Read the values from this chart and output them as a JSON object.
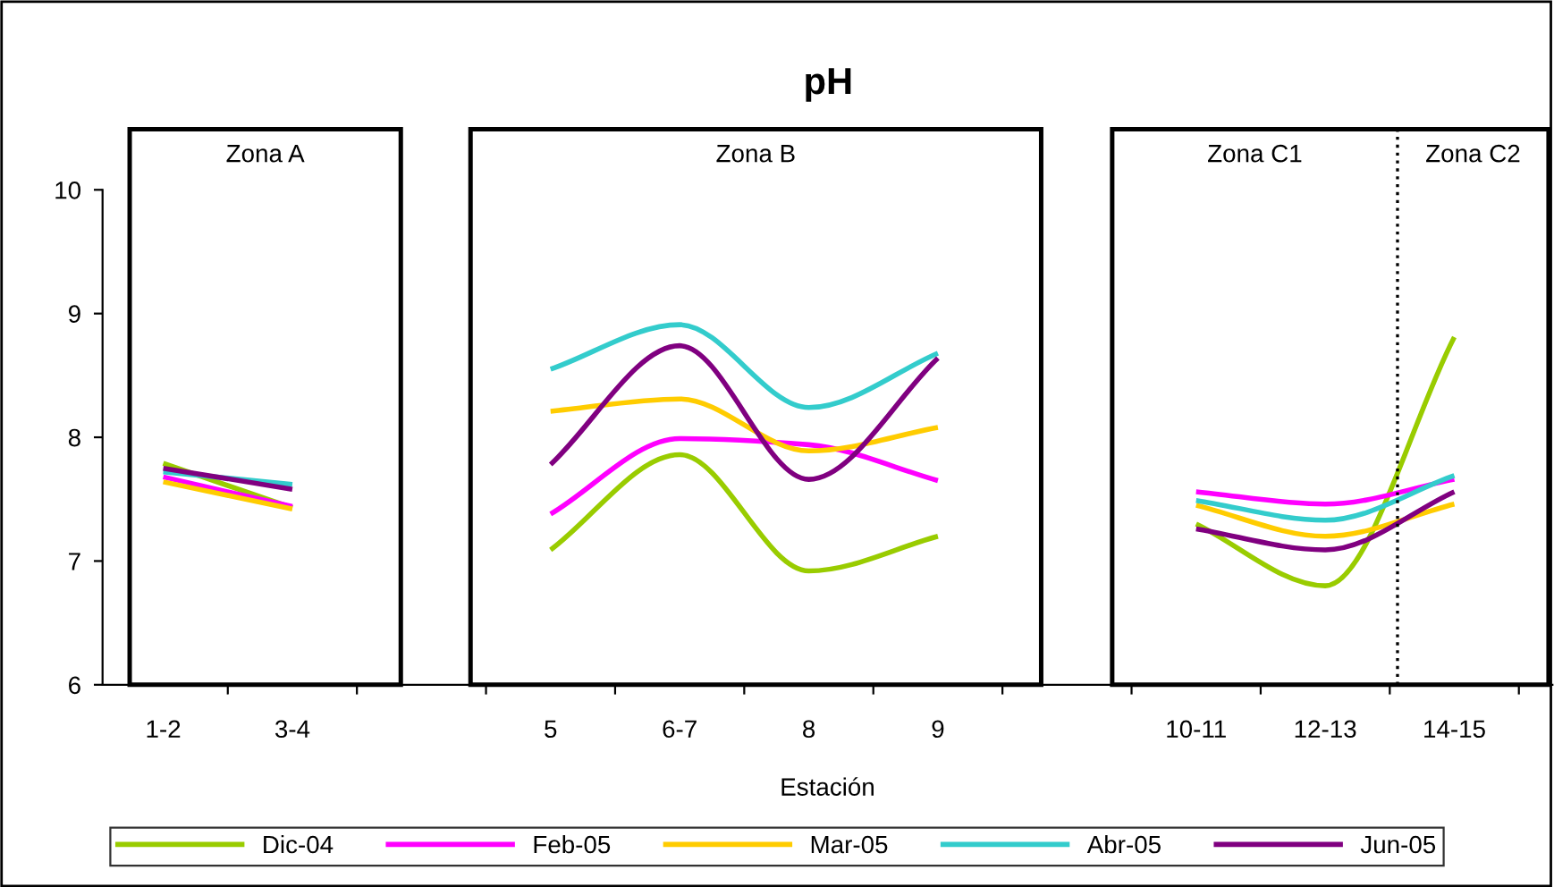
{
  "chart_data": {
    "type": "line",
    "title": "pH",
    "xlabel": "Estación",
    "categories": [
      "1-2",
      "3-4",
      null,
      "5",
      "6-7",
      "8",
      "9",
      null,
      "10-11",
      "12-13",
      "14-15"
    ],
    "series": [
      {
        "name": "Dic-04",
        "color": "#99cc00",
        "values": [
          7.79,
          7.43,
          null,
          7.09,
          7.86,
          6.92,
          7.2,
          null,
          7.3,
          6.8,
          8.81
        ]
      },
      {
        "name": "Feb-05",
        "color": "#ff00ff",
        "values": [
          7.68,
          7.44,
          null,
          7.38,
          7.99,
          7.94,
          7.65,
          null,
          7.56,
          7.46,
          7.66
        ]
      },
      {
        "name": "Mar-05",
        "color": "#ffcc00",
        "values": [
          7.64,
          7.42,
          null,
          8.21,
          8.31,
          7.89,
          8.08,
          null,
          7.45,
          7.2,
          7.46
        ]
      },
      {
        "name": "Abr-05",
        "color": "#33cccc",
        "values": [
          7.72,
          7.62,
          null,
          8.55,
          8.91,
          8.24,
          8.68,
          null,
          7.49,
          7.33,
          7.69
        ]
      },
      {
        "name": "Jun-05",
        "color": "#800080",
        "values": [
          7.75,
          7.58,
          null,
          7.78,
          8.74,
          7.66,
          8.64,
          null,
          7.26,
          7.09,
          7.56
        ]
      }
    ],
    "annotations": [
      "Zona A",
      "Zona B",
      "Zona C1",
      "Zona C2"
    ],
    "ylim": [
      6,
      10
    ],
    "yticks": [
      6,
      7,
      8,
      9,
      10
    ],
    "legend": "bottom",
    "marker": "none",
    "line_style": "solid"
  }
}
